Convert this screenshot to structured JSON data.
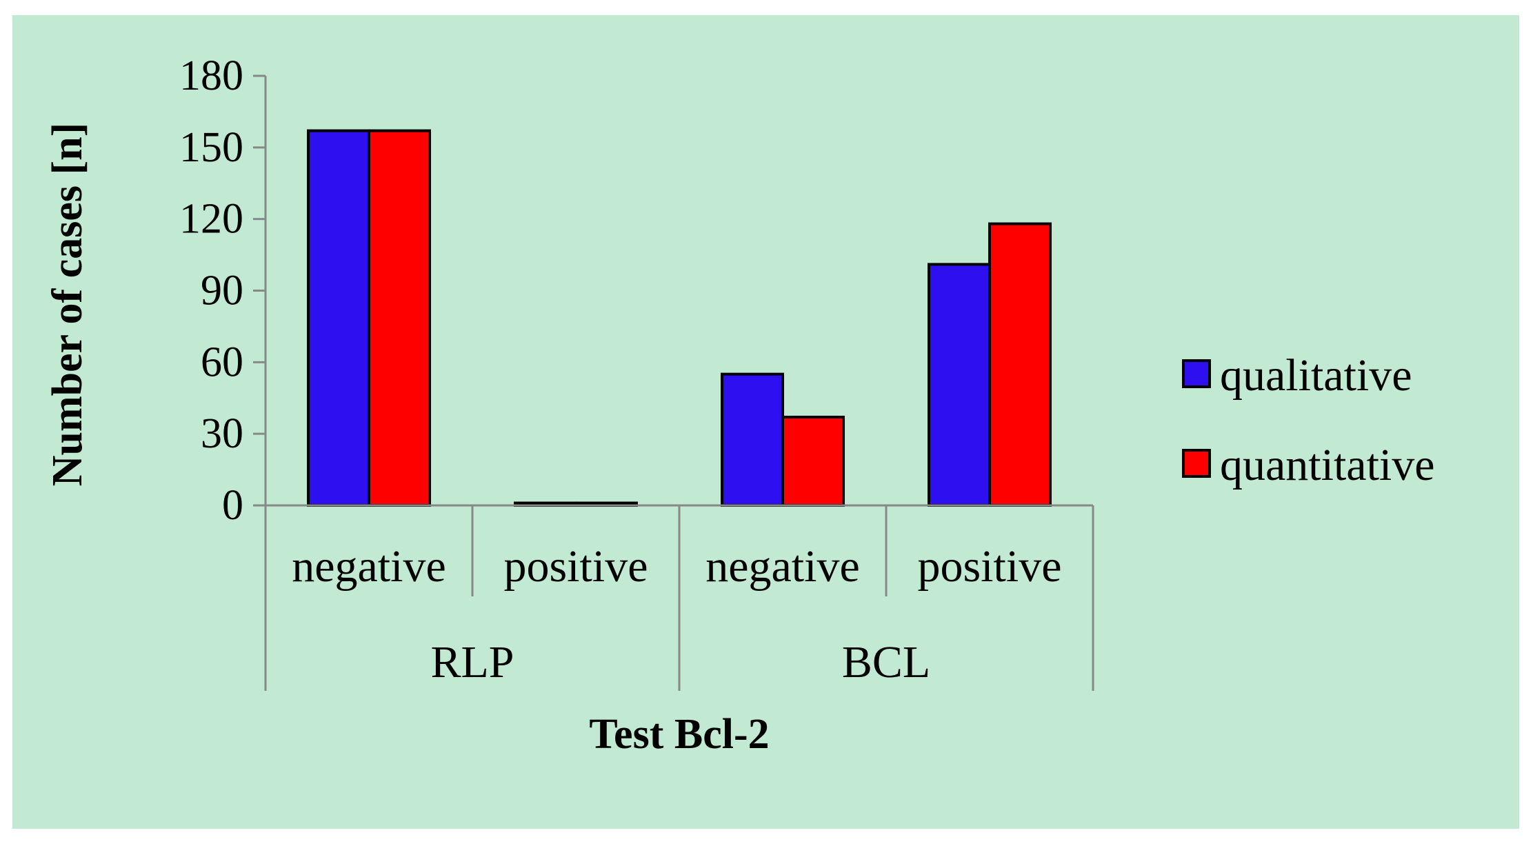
{
  "chart_data": {
    "type": "bar",
    "title": "",
    "background_color": "#c2e9d1",
    "ylabel": "Number of cases [n]",
    "xlabel": "Test Bcl-2",
    "ylim": [
      0,
      180
    ],
    "yticks": [
      0,
      30,
      60,
      90,
      120,
      150,
      180
    ],
    "ytick_labels": [
      "0",
      "30",
      "60",
      "90",
      "120",
      "150",
      "180"
    ],
    "groups": [
      {
        "name": "RLP",
        "categories": [
          "negative",
          "positive"
        ]
      },
      {
        "name": "BCL",
        "categories": [
          "negative",
          "positive"
        ]
      }
    ],
    "categories": [
      "negative",
      "positive",
      "negative",
      "positive"
    ],
    "series": [
      {
        "name": "qualitative",
        "color": "#2e0ff0",
        "values": [
          157,
          1,
          55,
          101
        ]
      },
      {
        "name": "quantitative",
        "color": "#ff0000",
        "values": [
          157,
          1,
          37,
          118
        ]
      }
    ],
    "legend_position": "right"
  }
}
